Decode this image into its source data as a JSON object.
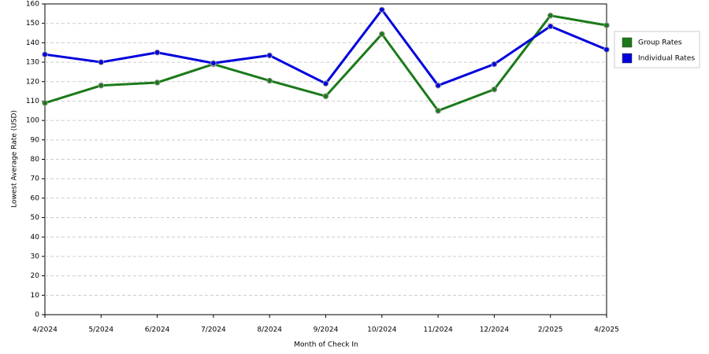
{
  "chart_data": {
    "type": "line",
    "x_label": "Month of Check In",
    "y_label": "Lowest Average Rate (USD)",
    "categories": [
      "4/2024",
      "5/2024",
      "6/2024",
      "7/2024",
      "8/2024",
      "9/2024",
      "10/2024",
      "11/2024",
      "12/2024",
      "2/2025",
      "4/2025"
    ],
    "series": [
      {
        "name": "Group Rates",
        "color": "#1a7a1a",
        "values": [
          109,
          118,
          119.5,
          129,
          120.5,
          112.5,
          144.5,
          105,
          116,
          154,
          149
        ]
      },
      {
        "name": "Individual Rates",
        "color": "#0000dd",
        "values": [
          134,
          130,
          135,
          129.5,
          133.5,
          119,
          157,
          118,
          129,
          148.5,
          136.5
        ]
      }
    ],
    "ylim": [
      0,
      160
    ],
    "yticks": [
      0,
      10,
      20,
      30,
      40,
      50,
      60,
      70,
      80,
      90,
      100,
      110,
      120,
      130,
      140,
      150,
      160
    ],
    "grid": true,
    "legend": "right"
  }
}
